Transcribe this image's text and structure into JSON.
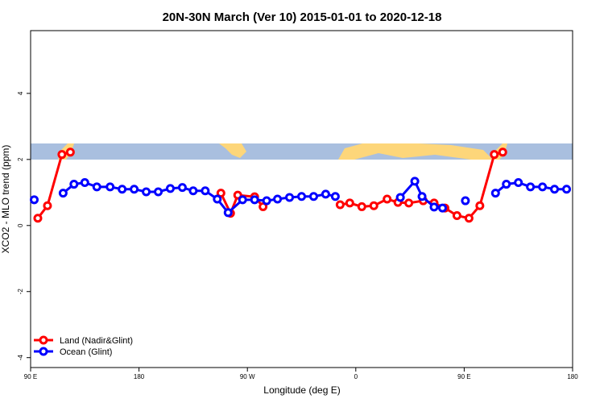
{
  "chart_data": {
    "type": "line",
    "title": "20N-30N March (Ver 10)   2015-01-01 to 2020-12-18",
    "x_label": "Longitude (deg E)",
    "y_label": "XCO2 - MLO trend (ppm)",
    "xlim": [
      90,
      540
    ],
    "ylim": [
      -4.3,
      5.9
    ],
    "xticks": [
      {
        "value": 90,
        "label": "90 E"
      },
      180,
      {
        "value": 270,
        "label": "90 W"
      },
      {
        "value": 360,
        "label": "0"
      },
      {
        "value": 450,
        "label": "90 E"
      },
      {
        "value": 540,
        "label": "180"
      }
    ],
    "yticks": [
      -4,
      -2,
      0,
      2,
      4
    ],
    "legend": "bottom-left",
    "series": [
      {
        "name": "Land (Nadir&Glint)",
        "color": "#ff0000",
        "x": [
          96,
          104,
          116,
          123,
          180,
          248,
          256,
          262,
          276,
          283,
          310,
          347,
          355,
          365,
          375,
          386,
          395,
          404,
          416,
          425,
          434,
          444,
          454,
          463,
          475,
          482
        ],
        "values": [
          0.22,
          0.6,
          2.15,
          2.22,
          null,
          0.98,
          0.37,
          0.92,
          0.87,
          0.57,
          null,
          0.63,
          0.68,
          0.57,
          0.6,
          0.8,
          0.7,
          0.68,
          0.75,
          0.68,
          0.53,
          0.3,
          0.22,
          0.6,
          2.15,
          2.22
        ]
      },
      {
        "name": "Ocean (Glint)",
        "color": "#0000ff",
        "x": [
          93,
          100,
          117,
          126,
          135,
          145,
          156,
          166,
          176,
          186,
          196,
          206,
          216,
          225,
          235,
          245,
          254,
          266,
          276,
          286,
          295,
          305,
          315,
          325,
          335,
          343,
          370,
          397,
          409,
          415,
          425,
          432,
          440,
          451,
          460,
          476,
          485,
          495,
          505,
          515,
          525,
          535
        ],
        "values": [
          0.78,
          null,
          0.98,
          1.25,
          1.3,
          1.17,
          1.17,
          1.1,
          1.1,
          1.02,
          1.02,
          1.12,
          1.15,
          1.05,
          1.05,
          0.8,
          0.39,
          0.78,
          0.78,
          0.75,
          0.8,
          0.85,
          0.88,
          0.88,
          0.95,
          0.88,
          null,
          0.85,
          1.34,
          0.88,
          0.56,
          0.53,
          null,
          0.75,
          null,
          0.98,
          1.25,
          1.3,
          1.17,
          1.17,
          1.1,
          1.1
        ]
      }
    ]
  }
}
